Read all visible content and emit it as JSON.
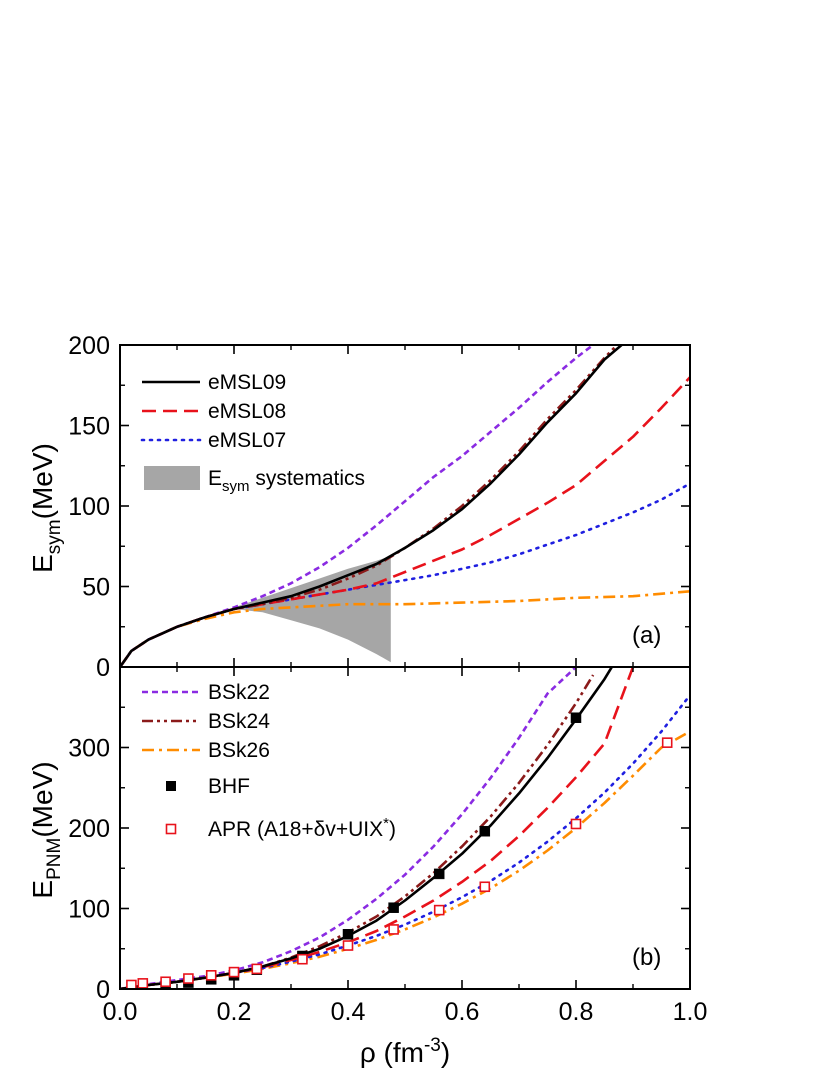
{
  "chart_data": [
    {
      "panel": "a",
      "type": "line",
      "panel_label": "(a)",
      "ylabel_main": "E",
      "ylabel_sub": "sym",
      "ylabel_unit": "(MeV)",
      "xlim": [
        0.0,
        1.0
      ],
      "ylim": [
        0,
        200
      ],
      "xticks": [
        0.0,
        0.2,
        0.4,
        0.6,
        0.8,
        1.0
      ],
      "yticks": [
        0,
        50,
        100,
        150,
        200
      ],
      "legend_position": "top-left",
      "series": [
        {
          "name": "eMSL09",
          "color": "#000000",
          "dash": "solid",
          "x": [
            0,
            0.02,
            0.05,
            0.1,
            0.15,
            0.2,
            0.25,
            0.3,
            0.35,
            0.4,
            0.45,
            0.5,
            0.55,
            0.6,
            0.65,
            0.7,
            0.75,
            0.8,
            0.85,
            0.88
          ],
          "y": [
            0,
            10,
            17,
            25,
            31,
            36,
            40,
            44,
            50,
            57,
            64,
            74,
            85,
            98,
            114,
            132,
            152,
            170,
            191,
            200
          ]
        },
        {
          "name": "eMSL08",
          "color": "#e8121b",
          "dash": "dash",
          "x": [
            0,
            0.02,
            0.05,
            0.1,
            0.15,
            0.2,
            0.25,
            0.3,
            0.35,
            0.4,
            0.45,
            0.5,
            0.55,
            0.6,
            0.65,
            0.7,
            0.75,
            0.8,
            0.85,
            0.9,
            0.95,
            1.0
          ],
          "y": [
            0,
            10,
            17,
            25,
            31,
            36,
            39,
            42,
            45,
            48,
            52,
            59,
            66,
            73,
            82,
            92,
            102,
            113,
            128,
            143,
            161,
            180
          ]
        },
        {
          "name": "eMSL07",
          "color": "#1f1fe0",
          "dash": "dot",
          "x": [
            0,
            0.02,
            0.05,
            0.1,
            0.15,
            0.2,
            0.25,
            0.3,
            0.35,
            0.4,
            0.45,
            0.5,
            0.55,
            0.6,
            0.65,
            0.7,
            0.75,
            0.8,
            0.85,
            0.9,
            0.95,
            1.0
          ],
          "y": [
            0,
            10,
            17,
            25,
            31,
            36,
            39,
            42,
            45,
            48,
            51,
            54,
            57,
            61,
            65,
            70,
            76,
            82,
            89,
            96,
            104,
            114
          ]
        },
        {
          "name": "BSk22",
          "color": "#8a2be2",
          "dash": "shortdash",
          "x": [
            0,
            0.02,
            0.05,
            0.1,
            0.15,
            0.2,
            0.25,
            0.3,
            0.35,
            0.4,
            0.45,
            0.5,
            0.55,
            0.6,
            0.65,
            0.7,
            0.75,
            0.8,
            0.83
          ],
          "y": [
            0,
            10,
            17,
            25,
            31,
            37,
            44,
            52,
            62,
            74,
            88,
            103,
            118,
            131,
            146,
            161,
            177,
            192,
            200
          ]
        },
        {
          "name": "BSk24",
          "color": "#8b1a1a",
          "dash": "dashdotdot",
          "x": [
            0,
            0.02,
            0.05,
            0.1,
            0.15,
            0.2,
            0.25,
            0.3,
            0.35,
            0.4,
            0.45,
            0.5,
            0.55,
            0.6,
            0.65,
            0.7,
            0.75,
            0.8,
            0.85,
            0.88
          ],
          "y": [
            0,
            10,
            17,
            25,
            31,
            36,
            39,
            43,
            48,
            55,
            63,
            74,
            86,
            100,
            116,
            134,
            154,
            172,
            192,
            203
          ]
        },
        {
          "name": "BSk26",
          "color": "#ff8c00",
          "dash": "dashdot",
          "x": [
            0,
            0.02,
            0.05,
            0.1,
            0.15,
            0.2,
            0.25,
            0.3,
            0.35,
            0.4,
            0.5,
            0.6,
            0.7,
            0.8,
            0.9,
            1.0
          ],
          "y": [
            0,
            10,
            17,
            25,
            30,
            34,
            36,
            37,
            38,
            39,
            39,
            40,
            41,
            43,
            44,
            47
          ]
        }
      ],
      "band": {
        "name": "E_sym systematics",
        "legend_main": "E",
        "legend_sub": "sym",
        "legend_rest": " systematics",
        "color": "#a6a6a6",
        "x": [
          0.2,
          0.25,
          0.3,
          0.35,
          0.4,
          0.45,
          0.475
        ],
        "upper": [
          37,
          43,
          49,
          55,
          61,
          66,
          69
        ],
        "lower": [
          36,
          34,
          29,
          24,
          17,
          8,
          3
        ]
      }
    },
    {
      "panel": "b",
      "type": "line",
      "panel_label": "(b)",
      "xlabel_main": "ρ (fm",
      "xlabel_sup": "-3",
      "xlabel_end": ")",
      "ylabel_main": "E",
      "ylabel_sub": "PNM",
      "ylabel_unit": "(MeV)",
      "xlim": [
        0.0,
        1.0
      ],
      "ylim": [
        0,
        400
      ],
      "xticks": [
        0.0,
        0.2,
        0.4,
        0.6,
        0.8,
        1.0
      ],
      "xtick_labels": [
        "0.0",
        "0.2",
        "0.4",
        "0.6",
        "0.8",
        "1.0"
      ],
      "yticks": [
        0,
        100,
        200,
        300
      ],
      "legend_position": "top-left",
      "series": [
        {
          "name": "eMSL09",
          "color": "#000000",
          "dash": "solid",
          "x": [
            0,
            0.05,
            0.1,
            0.15,
            0.2,
            0.25,
            0.3,
            0.35,
            0.4,
            0.45,
            0.5,
            0.55,
            0.6,
            0.65,
            0.7,
            0.75,
            0.8,
            0.85,
            0.88
          ],
          "y": [
            0,
            5,
            9,
            14,
            20,
            28,
            38,
            50,
            66,
            85,
            110,
            138,
            168,
            203,
            243,
            287,
            335,
            385,
            420
          ]
        },
        {
          "name": "eMSL08",
          "color": "#e8121b",
          "dash": "dash",
          "x": [
            0,
            0.05,
            0.1,
            0.15,
            0.2,
            0.25,
            0.3,
            0.35,
            0.4,
            0.45,
            0.5,
            0.55,
            0.6,
            0.65,
            0.7,
            0.75,
            0.8,
            0.85,
            0.9
          ],
          "y": [
            0,
            5,
            9,
            14,
            20,
            27,
            36,
            46,
            58,
            72,
            90,
            110,
            133,
            159,
            190,
            225,
            263,
            305,
            400
          ]
        },
        {
          "name": "eMSL07",
          "color": "#1f1fe0",
          "dash": "dot",
          "x": [
            0,
            0.05,
            0.1,
            0.15,
            0.2,
            0.25,
            0.3,
            0.35,
            0.4,
            0.45,
            0.5,
            0.55,
            0.6,
            0.65,
            0.7,
            0.75,
            0.8,
            0.85,
            0.9,
            0.95,
            1.0
          ],
          "y": [
            0,
            5,
            9,
            14,
            20,
            26,
            34,
            43,
            54,
            66,
            80,
            96,
            114,
            134,
            157,
            183,
            212,
            244,
            280,
            320,
            365
          ]
        },
        {
          "name": "BSk22",
          "color": "#8a2be2",
          "dash": "shortdash",
          "x": [
            0,
            0.05,
            0.1,
            0.15,
            0.2,
            0.25,
            0.3,
            0.35,
            0.4,
            0.45,
            0.5,
            0.55,
            0.6,
            0.65,
            0.7,
            0.75,
            0.8
          ],
          "y": [
            0,
            6,
            11,
            16,
            23,
            33,
            47,
            64,
            86,
            112,
            142,
            177,
            217,
            262,
            312,
            367,
            400
          ]
        },
        {
          "name": "BSk24",
          "color": "#8b1a1a",
          "dash": "dashdotdot",
          "x": [
            0,
            0.05,
            0.1,
            0.15,
            0.2,
            0.25,
            0.3,
            0.35,
            0.4,
            0.45,
            0.5,
            0.55,
            0.6,
            0.65,
            0.7,
            0.75,
            0.8,
            0.83
          ],
          "y": [
            0,
            5,
            9,
            14,
            20,
            28,
            39,
            53,
            70,
            90,
            115,
            144,
            177,
            214,
            256,
            303,
            355,
            390
          ]
        },
        {
          "name": "BSk26",
          "color": "#ff8c00",
          "dash": "dashdot",
          "x": [
            0,
            0.05,
            0.1,
            0.15,
            0.2,
            0.25,
            0.3,
            0.35,
            0.4,
            0.45,
            0.5,
            0.55,
            0.6,
            0.65,
            0.7,
            0.75,
            0.8,
            0.85,
            0.9,
            0.95,
            1.0
          ],
          "y": [
            0,
            5,
            9,
            14,
            19,
            25,
            32,
            40,
            50,
            61,
            74,
            89,
            106,
            125,
            147,
            172,
            200,
            231,
            265,
            300,
            320
          ]
        }
      ],
      "markers": [
        {
          "name": "BHF",
          "shape": "filled-square",
          "color": "#000000",
          "x": [
            0.04,
            0.08,
            0.12,
            0.16,
            0.2,
            0.24,
            0.32,
            0.4,
            0.48,
            0.56,
            0.64,
            0.8
          ],
          "y": [
            3,
            4,
            8,
            12,
            17,
            24,
            41,
            68,
            101,
            143,
            196,
            337
          ]
        },
        {
          "name": "APR",
          "legend_main": "APR (A18+δv+UIX",
          "legend_sup": "*",
          "legend_end": ")",
          "shape": "open-square",
          "color": "#e8121b",
          "x": [
            0.02,
            0.04,
            0.08,
            0.12,
            0.16,
            0.2,
            0.24,
            0.32,
            0.4,
            0.48,
            0.56,
            0.64,
            0.8,
            0.96
          ],
          "y": [
            5,
            7,
            9,
            13,
            17,
            21,
            25,
            37,
            54,
            74,
            98,
            127,
            205,
            306
          ]
        }
      ]
    }
  ]
}
